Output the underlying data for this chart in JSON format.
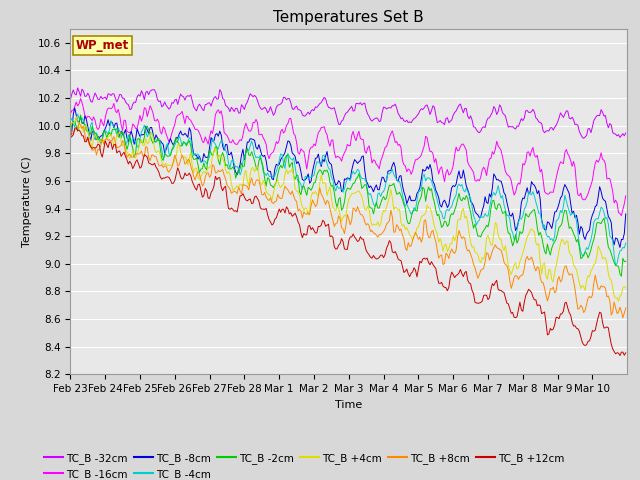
{
  "title": "Temperatures Set B",
  "xlabel": "Time",
  "ylabel": "Temperature (C)",
  "ylim": [
    8.2,
    10.7
  ],
  "xlim": [
    0,
    384
  ],
  "xtick_labels": [
    "Feb 23",
    "Feb 24",
    "Feb 25",
    "Feb 26",
    "Feb 27",
    "Feb 28",
    "Mar 1",
    "Mar 2",
    "Mar 3",
    "Mar 4",
    "Mar 5",
    "Mar 6",
    "Mar 7",
    "Mar 8",
    "Mar 9",
    "Mar 10"
  ],
  "xtick_positions": [
    0,
    24,
    48,
    72,
    96,
    120,
    144,
    168,
    192,
    216,
    240,
    264,
    288,
    312,
    336,
    360
  ],
  "wp_met_label": "WP_met",
  "n_points": 384,
  "bg_color": "#d8d8d8",
  "plot_bg_color": "#e8e8e8",
  "grid_color": "#ffffff",
  "title_fontsize": 11,
  "label_fontsize": 8,
  "tick_fontsize": 7.5
}
